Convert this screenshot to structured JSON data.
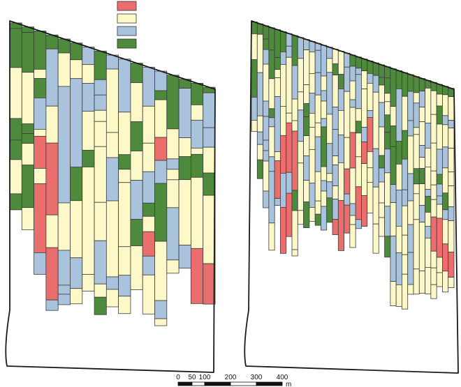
{
  "legend": {
    "swatches": [
      {
        "color": "#ea6e6d"
      },
      {
        "color": "#fdf8c7"
      },
      {
        "color": "#a9c3dd"
      },
      {
        "color": "#4e8a3c"
      }
    ]
  },
  "maps": [
    {
      "name": "map-left",
      "strips": [
        [
          "G:8,G:56,Y:73,G:31,G:28,Y:49,G:23"
        ],
        [
          "G:8,G:57,Y:74,G:14,G:14,Y:31,G:61,Y:32"
        ],
        [
          "G:55,Y:13,G:28,B:45,Y:10,R:46,Y:22,R:99,B:31"
        ],
        [
          "G:20,B:82,Y:53,R:103,Y:47,R:75,B:15"
        ],
        [
          "G:20,Y:48,B:167,Y:68,B:50,B:13,B:15"
        ],
        [
          "G:24,Y:27,B:127,G:48,Y:82,B:44,Y:22"
        ],
        [
          "B:25,Y:27,B:40,Y:56,G:24,Y:154,Y:24"
        ],
        [
          "G:41,B:22,B:22,Y:16,Y:36,Y:80,Y:55,B:62,Y:19,G:25"
        ],
        [
          "B:20,Y:91,Y:36,B:62,Y:109,B:18,Y:25"
        ],
        [
          "B:76,Y:61,G:21,Y:19,Y:92,Y:41,B:30,Y:25"
        ],
        [
          "G:28,Y:56,G:42,Y:42,B:56,G:38,Y:63"
        ],
        [
          "B:56,Y:53,Y:41,B:45,G:19,Y:22,R:35,B:27,Y:56"
        ],
        [
          "B:28,G:13,Y:54,R:33,B:33,G:83,Y:85,B:26,Y:10"
        ],
        [
          "G:77,Y:43,B:15,Y:15,Y:40,B:75,Y:19"
        ],
        [
          "G:13,B:71,Y:27,G:33,Y:94,B:33"
        ],
        [
          "G:31,Y:22,B:40,Y:9,G:33,Y:102,R:79"
        ],
        [
          "G:8,B:50,B:28,Y:37,G:32,Y:98,R:58"
        ]
      ]
    },
    {
      "name": "map-right",
      "strips": [
        [
          "G:17,Y:37,G:54,B:33,Y:16"
        ],
        [
          "G:15,Y:55,B:62,Y:23,B:18,Y:22,G:27"
        ],
        [
          "G:19,G:15,B:21,Y:53,B:22,B:34,B:15,B:15,Y:43,B:24"
        ],
        [
          "G:32,G:41,Y:43,G:13,B:13,Y:43,B:21,B:74,Y:39"
        ],
        [
          "G:40,G:17,Y:12,Y:27,B:79,Y:13,R:54,B:10"
        ],
        [
          "G:29,B:18,Y:60,Y:42,R:54,B:49,R:66"
        ],
        [
          "B:18,B:16,Y:80,Y:14,R:71,B:30,R:62"
        ],
        [
          "G:43,B:48,Y:31,Y:15,R:85,G:29,Y:56,Y:9"
        ],
        [
          "B:30,Y:48,Y:26,B:45,Y:31,Y:68,Y:20"
        ],
        [
          "B:15,Y:50,Y:27,G:19,G:27,Y:29,B:35,Y:31,G:37"
        ],
        [
          "B:15,Y:31,Y:28,B:29,Y:20,Y:32,Y:48,B:35,Y:20"
        ],
        [
          "B:10,B:32,B:32,Y:40,Y:20,B:50,Y:42,Y:19,G:16"
        ],
        [
          "B:44,Y:21,B:15,Y:25,B:12,G:57,Y:20,B:15,Y:22,B:34"
        ],
        [
          "B:16,Y:20,B:60,Y:42,B:43,Y:12,B:23,G:35"
        ],
        [
          "Y:21,G:16,Y:46,B:32,B:38,Y:13,B:30,Y:19,B:29,R:22"
        ],
        [
          "Y:33,G:21,B:31,Y:35,B:40,Y:54,R:72"
        ],
        [
          "B:20,B:35,Y:66,Y:45,R:36,B:16,R:40"
        ],
        [
          "G:16,B:21,Y:27,B:11,Y:36,R:51,Y:51,B:17,Y:13,Y:33"
        ],
        [
          "G:16,B:9,B:49,Y:18,G:17,Y:34,Y:43,R:47,B:13"
        ],
        [
          "G:17,Y:26,Y:55,B:21,R:31,Y:46,R:44"
        ],
        [
          "G:18,B:14,Y:39,B:10,R:49,Y:23,Y:21,Y:44"
        ],
        [
          "G:18,B:24,Y:81,B:55,Y:53,Y:42"
        ],
        [
          "G:18,G:11,Y:25,B:35,Y:41,G:18,B:20,Y:30,Y:21,Y:27"
        ],
        [
          "G:16,G:22,Y:12,Y:19,G:25,G:24,B:34,Y:48,B:43,G:30"
        ],
        [
          "G:54,Y:28,G:30,G:54,B:26,Y:48,B:65,Y:35"
        ],
        [
          "G:26,B:75,G:33,Y:37,B:52,Y:38,B:46,Y:31"
        ],
        [
          "G:34,Y:49,G:41,B:44,B:23,Y:42,Y:28,Y:28,Y:50"
        ],
        [
          "G:24,B:42,B:22,Y:54,B:39,Y:34,B:40,B:46,Y:14"
        ],
        [
          "G:23,Y:15,B:35,Y:10,Y:49,G:22,Y:14,Y:37,Y:71,Y:36"
        ],
        [
          "G:18,B:23,Y:21,Y:34,B:17,Y:16,G:22,Y:31,B:24,Y:70,Y:32"
        ],
        [
          "G:11,Y:50,B:36,Y:27,Y:32,B:10,G:23,Y:20,B:17,Y:42,Y:38"
        ],
        [
          "G:12,Y:34,Y:41,Y:40,Y:20,Y:21,Y:25,R:49,Y:24,Y:24,Y:20"
        ],
        [
          "G:14,Y:17,G:26,Y:36,B:36,G:14,B:17,B:12,Y:20,R:56,Y:22,Y:20"
        ],
        [
          "G:12,Y:30,B:13,Y:32,B:30,Y:36,G:24,B:14,Y:35,R:39,Y:30"
        ],
        [
          "G:12,Y:34,B:11,Y:29,Y:34,Y:20,Y:30,B:20,Y:45,R:36,Y:15"
        ]
      ]
    }
  ],
  "scale_bar": {
    "ticks": [
      "0",
      "50",
      "100",
      "200",
      "300",
      "400"
    ],
    "unit": "m"
  }
}
